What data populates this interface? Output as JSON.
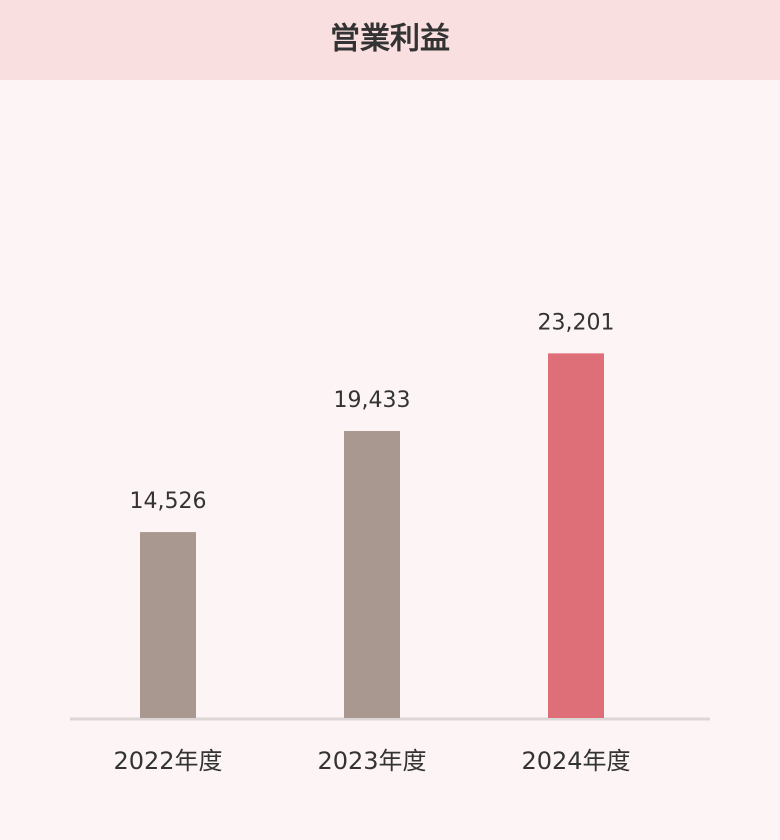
{
  "chart_data": {
    "type": "bar",
    "title": "営業利益",
    "categories": [
      "2022年度",
      "2023年度",
      "2024年度"
    ],
    "values": [
      14526,
      19433,
      23201
    ],
    "value_labels": [
      "14,526",
      "19,433",
      "23,201"
    ],
    "colors": [
      "#a89890",
      "#a89890",
      "#de6e78"
    ],
    "ylim": [
      5500,
      35500
    ]
  }
}
